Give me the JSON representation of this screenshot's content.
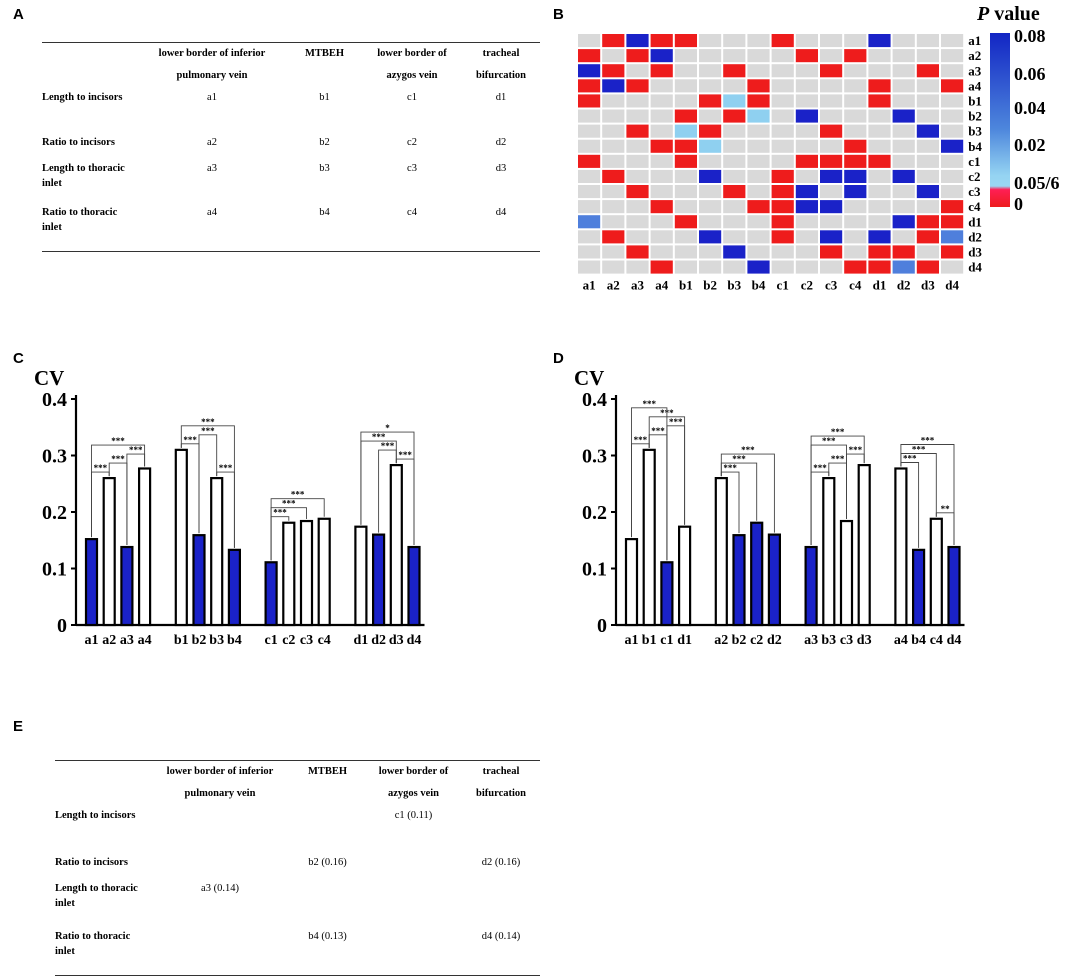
{
  "panel_labels": {
    "A": "A",
    "B": "B",
    "C": "C",
    "D": "D",
    "E": "E"
  },
  "table_a": {
    "headers": [
      "",
      "lower border of inferior pulmonary vein",
      "MTBEH",
      "lower border of azygos vein",
      "tracheal bifurcation"
    ],
    "rows": [
      {
        "label": "Length to incisors",
        "cells": [
          "a1",
          "b1",
          "c1",
          "d1"
        ]
      },
      {
        "label": "Ratio to incisors",
        "cells": [
          "a2",
          "b2",
          "c2",
          "d2"
        ]
      },
      {
        "label": "Length to thoracic inlet",
        "cells": [
          "a3",
          "b3",
          "c3",
          "d3"
        ]
      },
      {
        "label": "Ratio to thoracic inlet",
        "cells": [
          "a4",
          "b4",
          "c4",
          "d4"
        ]
      }
    ]
  },
  "table_e": {
    "headers": [
      "",
      "lower border of inferior pulmonary vein",
      "MTBEH",
      "lower border of azygos vein",
      "tracheal bifurcation"
    ],
    "rows": [
      {
        "label": "Length to incisors",
        "cells": [
          "",
          "",
          "c1 (0.11)",
          ""
        ]
      },
      {
        "label": "Ratio to incisors",
        "cells": [
          "",
          "b2 (0.16)",
          "",
          "d2 (0.16)"
        ]
      },
      {
        "label": "Length to thoracic inlet",
        "cells": [
          "a3 (0.14)",
          "",
          "",
          ""
        ]
      },
      {
        "label": "Ratio to thoracic inlet",
        "cells": [
          "",
          "b4 (0.13)",
          "",
          "d4 (0.14)"
        ]
      }
    ]
  },
  "chart_data": [
    {
      "type": "heatmap",
      "panel": "B",
      "labels": [
        "a1",
        "a2",
        "a3",
        "a4",
        "b1",
        "b2",
        "b3",
        "b4",
        "c1",
        "c2",
        "c3",
        "c4",
        "d1",
        "d2",
        "d3",
        "d4"
      ],
      "legend_title_italic": "P",
      "legend_title": " value",
      "legend_ticks": [
        "0.08",
        "0.06",
        "0.04",
        "0.02",
        "0.05/6",
        "0"
      ],
      "colors": {
        "red": "#ee1c1c",
        "gray": "#d9d9d9",
        "blue_dark": "#1a22c8",
        "blue_mid": "#4f7fdc",
        "blue_light": "#8fd0f0"
      },
      "matrix": [
        "GRBRRGGGRGGGBGGG",
        "RGRBGGGGGRGRGGGG",
        "BRGRGGRGGGRGGGRG",
        "RBRGGGGRGGGGRGGR",
        "RGGGGRLRGGGGRGGG",
        "GGGGRGRLGBGGGBGG",
        "GGRGLRGGGGRGGGBG",
        "GGGRRLGGGGGRGGGB",
        "RGGGRGGGGRRRRGGG",
        "GRGGGBGGRGBBGBGG",
        "GGRGGGRGRBGBGGBG",
        "GGGRGGGRRBBGGGGR",
        "MGGGRGGGRGGGGBRR",
        "GRGGGBGGRGBGBGRM",
        "GGRGGGBGGGRGRRGR",
        "GGGRGGGBGGGRRMRG"
      ]
    },
    {
      "type": "bar",
      "panel": "C",
      "ylabel": "CV",
      "ylim": [
        0,
        0.4
      ],
      "yticks": [
        "0",
        "0.1",
        "0.2",
        "0.3",
        "0.4"
      ],
      "categories": [
        "a1",
        "a2",
        "a3",
        "a4",
        "b1",
        "b2",
        "b3",
        "b4",
        "c1",
        "c2",
        "c3",
        "c4",
        "d1",
        "d2",
        "d3",
        "d4"
      ],
      "values": [
        0.152,
        0.26,
        0.138,
        0.277,
        0.31,
        0.159,
        0.26,
        0.133,
        0.111,
        0.181,
        0.184,
        0.188,
        0.174,
        0.16,
        0.283,
        0.138
      ],
      "filled": [
        true,
        false,
        true,
        false,
        false,
        true,
        false,
        true,
        true,
        false,
        false,
        false,
        false,
        true,
        false,
        true
      ],
      "groups": [
        4,
        4,
        4,
        4
      ],
      "fill_color": "#1a22c8",
      "significance": [
        {
          "from": 0,
          "to": 1,
          "label": "***"
        },
        {
          "from": 1,
          "to": 2,
          "label": "***"
        },
        {
          "from": 2,
          "to": 3,
          "label": "***"
        },
        {
          "from": 0,
          "to": 3,
          "label": "***"
        },
        {
          "from": 4,
          "to": 5,
          "label": "***"
        },
        {
          "from": 6,
          "to": 7,
          "label": "***"
        },
        {
          "from": 5,
          "to": 6,
          "label": "***"
        },
        {
          "from": 4,
          "to": 7,
          "label": "***"
        },
        {
          "from": 8,
          "to": 9,
          "label": "***"
        },
        {
          "from": 8,
          "to": 10,
          "label": "***"
        },
        {
          "from": 8,
          "to": 11,
          "label": "***"
        },
        {
          "from": 14,
          "to": 15,
          "label": "***"
        },
        {
          "from": 13,
          "to": 14,
          "label": "***"
        },
        {
          "from": 12,
          "to": 14,
          "label": "***"
        },
        {
          "from": 12,
          "to": 15,
          "label": "*"
        }
      ]
    },
    {
      "type": "bar",
      "panel": "D",
      "ylabel": "CV",
      "ylim": [
        0,
        0.4
      ],
      "yticks": [
        "0",
        "0.1",
        "0.2",
        "0.3",
        "0.4"
      ],
      "categories": [
        "a1",
        "b1",
        "c1",
        "d1",
        "a2",
        "b2",
        "c2",
        "d2",
        "a3",
        "b3",
        "c3",
        "d3",
        "a4",
        "b4",
        "c4",
        "d4"
      ],
      "values": [
        0.152,
        0.31,
        0.111,
        0.174,
        0.26,
        0.159,
        0.181,
        0.16,
        0.138,
        0.26,
        0.184,
        0.283,
        0.277,
        0.133,
        0.188,
        0.138
      ],
      "filled": [
        false,
        false,
        true,
        false,
        false,
        true,
        true,
        true,
        true,
        false,
        false,
        false,
        false,
        true,
        false,
        true
      ],
      "groups": [
        4,
        4,
        4,
        4
      ],
      "fill_color": "#1a22c8",
      "significance": [
        {
          "from": 0,
          "to": 1,
          "label": "***"
        },
        {
          "from": 1,
          "to": 2,
          "label": "***"
        },
        {
          "from": 2,
          "to": 3,
          "label": "***"
        },
        {
          "from": 1,
          "to": 3,
          "label": "***"
        },
        {
          "from": 0,
          "to": 2,
          "label": "***"
        },
        {
          "from": 4,
          "to": 5,
          "label": "***"
        },
        {
          "from": 4,
          "to": 6,
          "label": "***"
        },
        {
          "from": 4,
          "to": 7,
          "label": "***"
        },
        {
          "from": 8,
          "to": 9,
          "label": "***"
        },
        {
          "from": 9,
          "to": 10,
          "label": "***"
        },
        {
          "from": 10,
          "to": 11,
          "label": "***"
        },
        {
          "from": 8,
          "to": 10,
          "label": "***"
        },
        {
          "from": 8,
          "to": 11,
          "label": "***"
        },
        {
          "from": 12,
          "to": 13,
          "label": "***"
        },
        {
          "from": 14,
          "to": 15,
          "label": "**"
        },
        {
          "from": 12,
          "to": 14,
          "label": "***"
        },
        {
          "from": 12,
          "to": 15,
          "label": "***"
        }
      ]
    }
  ]
}
